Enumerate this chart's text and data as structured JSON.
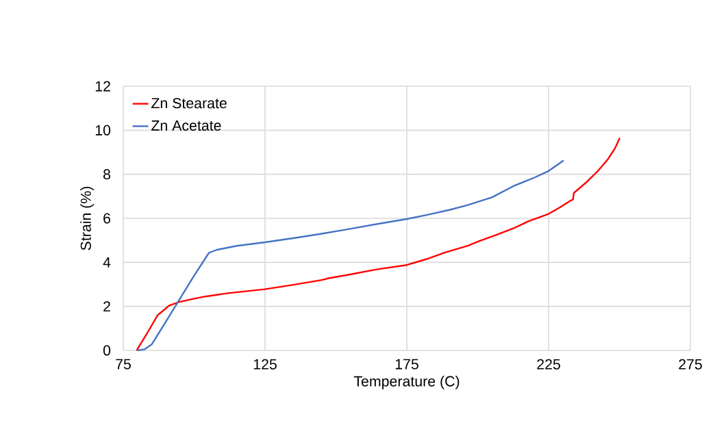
{
  "chart_data": {
    "type": "line",
    "xlabel": "Temperature  (C)",
    "ylabel": "Strain (%)",
    "xlim": [
      75,
      275
    ],
    "xticks": [
      75,
      125,
      175,
      225,
      275
    ],
    "ylim": [
      0,
      12
    ],
    "yticks": [
      0,
      2,
      4,
      6,
      8,
      10,
      12
    ],
    "grid": true,
    "legend": "top left",
    "marker": "none",
    "line_style": "solid",
    "series": [
      {
        "name": "Zn Stearate",
        "color": "#ff0000",
        "x": [
          79.7,
          83.5,
          87.1,
          89.5,
          91.1,
          94.4,
          100,
          104,
          112,
          124.9,
          135,
          145,
          147.5,
          155,
          164.4,
          175,
          182,
          188.5,
          196.5,
          200.6,
          206,
          212.7,
          218,
          225,
          229,
          232.7,
          233.6,
          233.9,
          238,
          242.4,
          246,
          248.5,
          250.1
        ],
        "values": [
          0,
          0.8,
          1.6,
          1.85,
          2.03,
          2.19,
          2.35,
          2.45,
          2.6,
          2.78,
          2.98,
          3.2,
          3.28,
          3.45,
          3.68,
          3.88,
          4.15,
          4.45,
          4.75,
          4.97,
          5.22,
          5.55,
          5.87,
          6.2,
          6.5,
          6.8,
          6.85,
          7.15,
          7.6,
          8.15,
          8.7,
          9.2,
          9.65
        ]
      },
      {
        "name": "Zn Acetate",
        "color": "#4472c4",
        "x": [
          80,
          82.5,
          85.1,
          90,
          95,
          100,
          105.2,
          108,
          115,
          125,
          135,
          145,
          155,
          165,
          175,
          182,
          190,
          196.5,
          205,
          212.7,
          220,
          225,
          230.3
        ],
        "values": [
          0,
          0.05,
          0.28,
          1.3,
          2.35,
          3.4,
          4.43,
          4.57,
          4.75,
          4.91,
          5.1,
          5.3,
          5.52,
          5.75,
          5.97,
          6.15,
          6.38,
          6.6,
          6.95,
          7.47,
          7.85,
          8.15,
          8.63
        ]
      }
    ]
  }
}
